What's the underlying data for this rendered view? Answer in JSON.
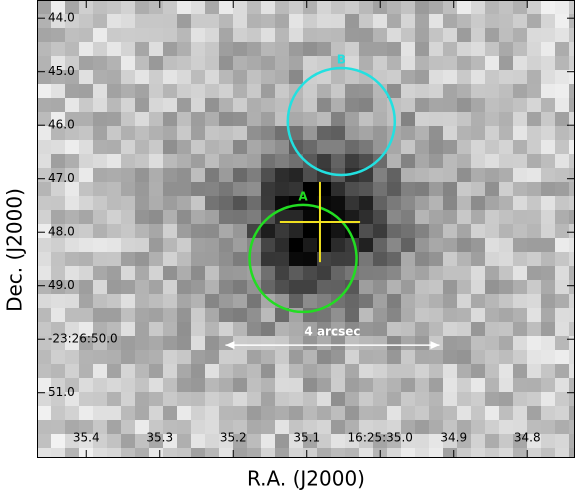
{
  "chart_data": {
    "type": "image",
    "xlabel": "R.A. (J2000)",
    "ylabel": "Dec. (J2000)",
    "xlim": [
      35.467,
      34.735
    ],
    "ylim": [
      43.66,
      52.22
    ],
    "xticks": [
      {
        "value": 35.4,
        "label": "35.4"
      },
      {
        "value": 35.3,
        "label": "35.3"
      },
      {
        "value": 35.2,
        "label": "35.2"
      },
      {
        "value": 35.1,
        "label": "35.1"
      },
      {
        "value": 35.0,
        "label": "16:25:35.0"
      },
      {
        "value": 34.9,
        "label": "34.9"
      },
      {
        "value": 34.8,
        "label": "34.8"
      }
    ],
    "yticks": [
      {
        "value": 44,
        "label": "44.0"
      },
      {
        "value": 45,
        "label": "45.0"
      },
      {
        "value": 46,
        "label": "46.0"
      },
      {
        "value": 47,
        "label": "47.0"
      },
      {
        "value": 48,
        "label": "48.0"
      },
      {
        "value": 49,
        "label": "49.0"
      },
      {
        "value": 50,
        "label": "-23:26:50.0"
      },
      {
        "value": 51,
        "label": "51.0"
      }
    ],
    "regions": [
      {
        "name": "A",
        "color": "#22dd22",
        "x": 35.105,
        "y": 48.49,
        "r": 1
      },
      {
        "name": "B",
        "color": "#22e0e0",
        "x": 35.053,
        "y": 45.93,
        "r": 1
      }
    ],
    "cross": {
      "color": "#f0e020",
      "x": 35.082,
      "y": 47.81,
      "size": 0.75
    },
    "scale_bar": {
      "label": "4 arcsec",
      "color": "#ffffff",
      "x": 35.065,
      "y": 50.11,
      "length": 4
    }
  }
}
